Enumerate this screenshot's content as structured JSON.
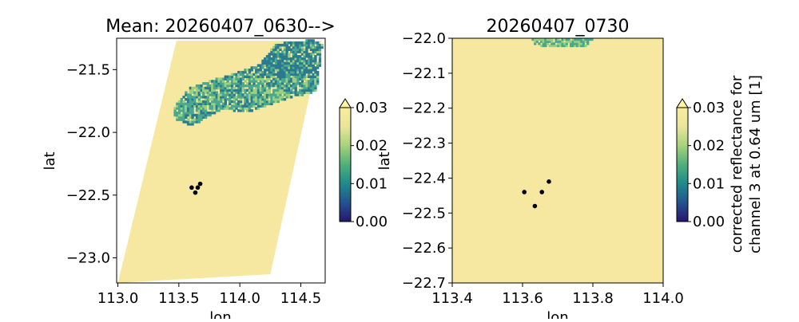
{
  "colors": {
    "land": "#f6e8a0",
    "cloud_dark": "#2b7a8f",
    "cloud_mid": "#4aa88f",
    "cloud_light": "#9ccf7e",
    "point": "#000000",
    "cmap": [
      "#27156f",
      "#23538f",
      "#1f8a8c",
      "#4fb07a",
      "#a7d27c",
      "#e9e69a",
      "#f8ec9e"
    ]
  },
  "chart_data": [
    {
      "type": "heatmap",
      "title": "Mean: 20260407_0630-->",
      "xlabel": "lon",
      "ylabel": "lat",
      "xlim": [
        112.99,
        114.7
      ],
      "ylim": [
        -23.2,
        -21.25
      ],
      "xticks": [
        113.0,
        113.5,
        114.0,
        114.5
      ],
      "xtick_labels": [
        "113.0",
        "113.5",
        "114.0",
        "114.5"
      ],
      "yticks": [
        -21.5,
        -22.0,
        -22.5,
        -23.0
      ],
      "ytick_labels": [
        "−21.5",
        "−22.0",
        "−22.5",
        "−23.0"
      ],
      "swath": {
        "top_left": [
          113.48,
          -21.27
        ],
        "top_right": [
          114.67,
          -21.27
        ],
        "bottom_right": [
          114.25,
          -23.13
        ],
        "bottom_left": [
          113.0,
          -23.2
        ]
      },
      "cloud_region": [
        [
          113.44,
          -21.82
        ],
        [
          113.58,
          -21.65
        ],
        [
          113.9,
          -21.55
        ],
        [
          114.15,
          -21.47
        ],
        [
          114.28,
          -21.3
        ],
        [
          114.6,
          -21.27
        ],
        [
          114.67,
          -21.3
        ],
        [
          114.62,
          -21.68
        ],
        [
          114.35,
          -21.75
        ],
        [
          114.05,
          -21.85
        ],
        [
          113.85,
          -21.82
        ],
        [
          113.7,
          -21.9
        ],
        [
          113.6,
          -21.96
        ],
        [
          113.45,
          -21.9
        ]
      ],
      "points": [
        {
          "lon": 113.605,
          "lat": -22.44
        },
        {
          "lon": 113.635,
          "lat": -22.48
        },
        {
          "lon": 113.655,
          "lat": -22.44
        },
        {
          "lon": 113.675,
          "lat": -22.41
        }
      ],
      "colorbar": {
        "min": 0.0,
        "max": 0.03,
        "ticks": [
          "0.00",
          "0.01",
          "0.02",
          "0.03"
        ],
        "extend": "max",
        "label": ""
      }
    },
    {
      "type": "heatmap",
      "title": "20260407_0730",
      "xlabel": "lon",
      "ylabel": "lat",
      "xlim": [
        113.4,
        114.0
      ],
      "ylim": [
        -22.7,
        -22.0
      ],
      "xticks": [
        113.4,
        113.6,
        113.8,
        114.0
      ],
      "xtick_labels": [
        "113.4",
        "113.6",
        "113.8",
        "114.0"
      ],
      "yticks": [
        -22.0,
        -22.1,
        -22.2,
        -22.3,
        -22.4,
        -22.5,
        -22.6,
        -22.7
      ],
      "ytick_labels": [
        "−22.0",
        "−22.1",
        "−22.2",
        "−22.3",
        "−22.4",
        "−22.5",
        "−22.6",
        "−22.7"
      ],
      "cloud_region": [
        [
          113.62,
          -22.0
        ],
        [
          113.8,
          -22.0
        ],
        [
          113.78,
          -22.025
        ],
        [
          113.68,
          -22.03
        ],
        [
          113.63,
          -22.02
        ]
      ],
      "points": [
        {
          "lon": 113.605,
          "lat": -22.44
        },
        {
          "lon": 113.635,
          "lat": -22.48
        },
        {
          "lon": 113.655,
          "lat": -22.44
        },
        {
          "lon": 113.675,
          "lat": -22.41
        }
      ],
      "colorbar": {
        "min": 0.0,
        "max": 0.03,
        "ticks": [
          "0.00",
          "0.01",
          "0.02",
          "0.03"
        ],
        "extend": "max",
        "label": [
          "corrected reflectance for",
          "channel 3 at 0.64 um [1]"
        ]
      }
    }
  ]
}
